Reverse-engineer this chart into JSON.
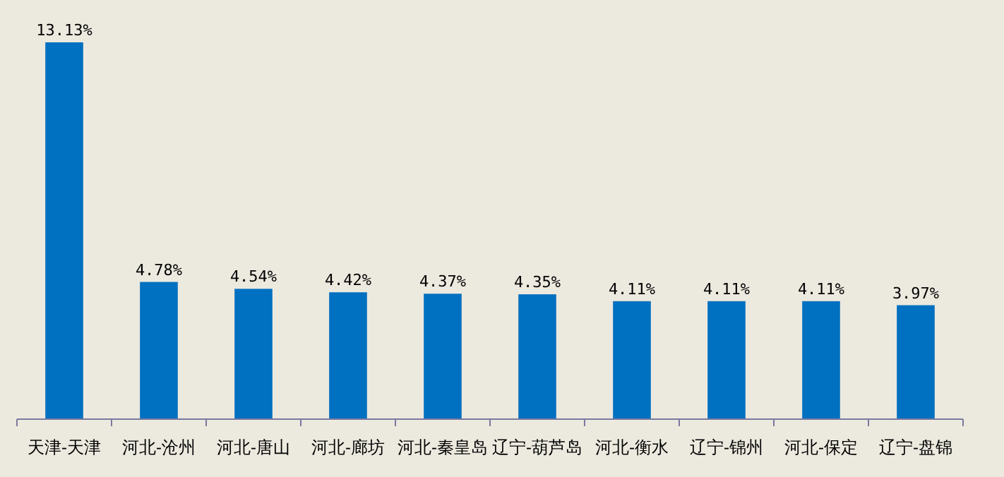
{
  "chart_data": {
    "type": "bar",
    "categories": [
      "天津-天津",
      "河北-沧州",
      "河北-唐山",
      "河北-廊坊",
      "河北-秦皇岛",
      "辽宁-葫芦岛",
      "河北-衡水",
      "辽宁-锦州",
      "河北-保定",
      "辽宁-盘锦"
    ],
    "values": [
      13.13,
      4.78,
      4.54,
      4.42,
      4.37,
      4.35,
      4.11,
      4.11,
      4.11,
      3.97
    ],
    "value_labels": [
      "13.13%",
      "4.78%",
      "4.54%",
      "4.42%",
      "4.37%",
      "4.35%",
      "4.11%",
      "4.11%",
      "4.11%",
      "3.97%"
    ],
    "color": "#0070c0"
  }
}
